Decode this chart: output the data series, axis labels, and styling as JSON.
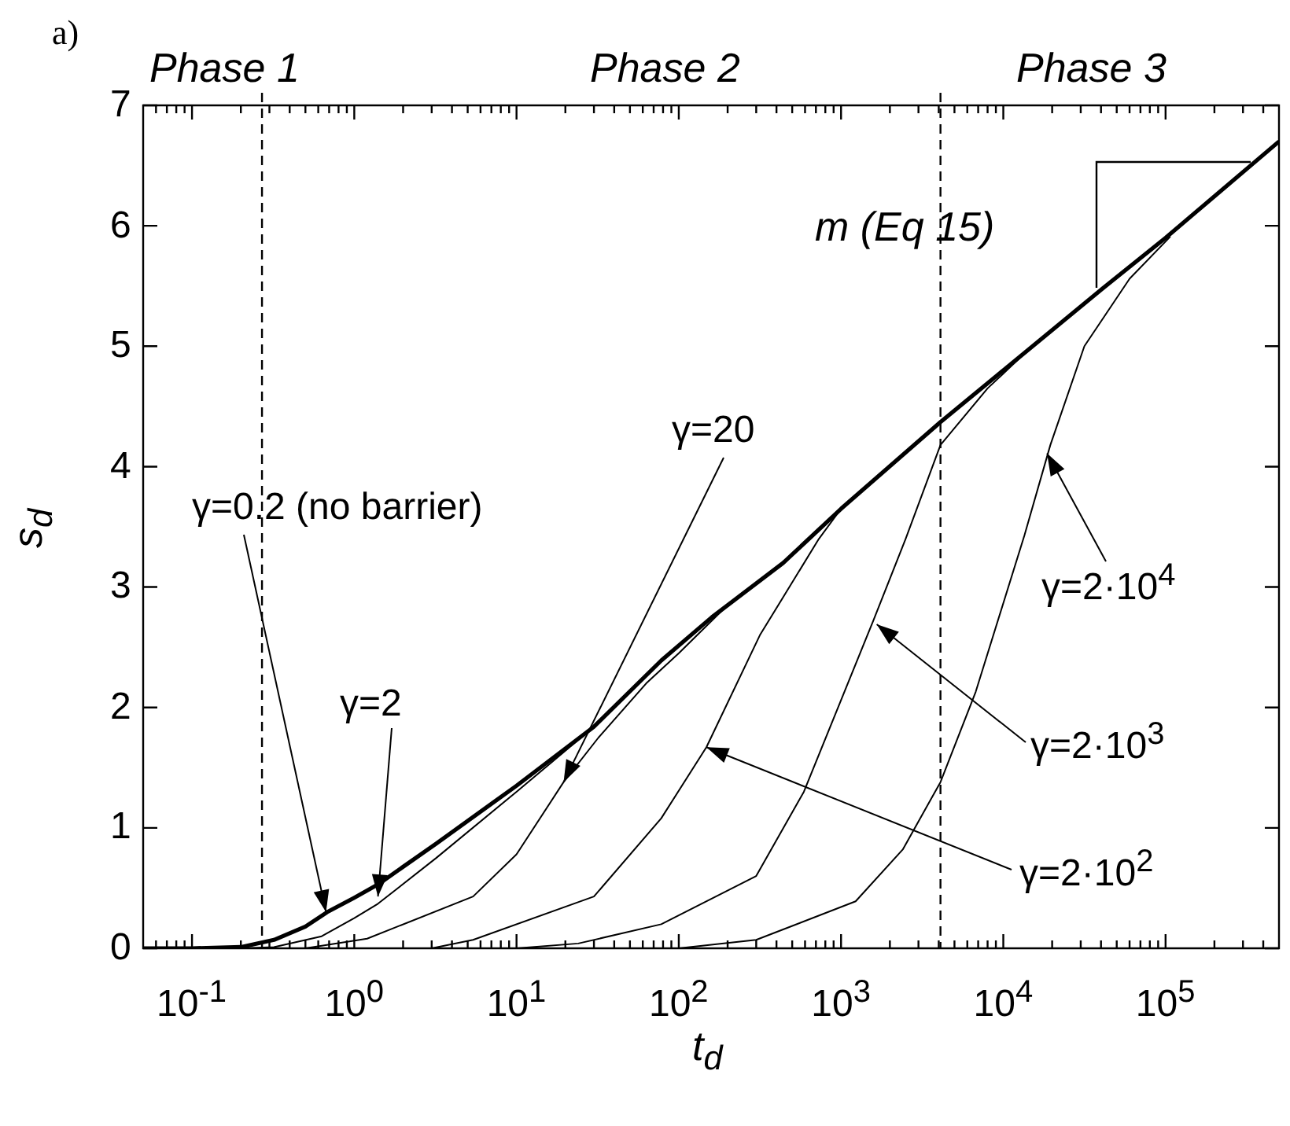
{
  "chart_data": {
    "type": "line",
    "title": "a)",
    "xlabel": "t$_{d}$",
    "ylabel": "s$_{d}$",
    "log": "x",
    "grid": false,
    "legend": false,
    "marker": "none",
    "xlim": [
      0.05,
      500000
    ],
    "ylim": [
      0,
      7
    ],
    "yticks": [
      0,
      1,
      2,
      3,
      4,
      5,
      6,
      7
    ],
    "xticks": [
      {
        "value": 0.06,
        "label": null
      },
      {
        "value": 0.07,
        "label": null
      },
      {
        "value": 0.08,
        "label": null
      },
      {
        "value": 0.09,
        "label": null
      },
      {
        "value": 0.1,
        "label": "10$^{-1}$"
      },
      {
        "value": 0.2,
        "label": null
      },
      {
        "value": 0.3,
        "label": null
      },
      {
        "value": 0.4,
        "label": null
      },
      {
        "value": 0.5,
        "label": null
      },
      {
        "value": 0.6,
        "label": null
      },
      {
        "value": 0.7,
        "label": null
      },
      {
        "value": 0.8,
        "label": null
      },
      {
        "value": 0.9,
        "label": null
      },
      {
        "value": 1,
        "label": "10$^{0}$"
      },
      {
        "value": 2,
        "label": null
      },
      {
        "value": 3,
        "label": null
      },
      {
        "value": 4,
        "label": null
      },
      {
        "value": 5,
        "label": null
      },
      {
        "value": 6,
        "label": null
      },
      {
        "value": 7,
        "label": null
      },
      {
        "value": 8,
        "label": null
      },
      {
        "value": 9,
        "label": null
      },
      {
        "value": 10,
        "label": "10$^{1}$"
      },
      {
        "value": 20,
        "label": null
      },
      {
        "value": 30,
        "label": null
      },
      {
        "value": 40,
        "label": null
      },
      {
        "value": 50,
        "label": null
      },
      {
        "value": 60,
        "label": null
      },
      {
        "value": 70,
        "label": null
      },
      {
        "value": 80,
        "label": null
      },
      {
        "value": 90,
        "label": null
      },
      {
        "value": 100,
        "label": "10$^{2}$"
      },
      {
        "value": 200,
        "label": null
      },
      {
        "value": 300,
        "label": null
      },
      {
        "value": 400,
        "label": null
      },
      {
        "value": 500,
        "label": null
      },
      {
        "value": 600,
        "label": null
      },
      {
        "value": 700,
        "label": null
      },
      {
        "value": 800,
        "label": null
      },
      {
        "value": 900,
        "label": null
      },
      {
        "value": 1000,
        "label": "10$^{3}$"
      },
      {
        "value": 2000,
        "label": null
      },
      {
        "value": 3000,
        "label": null
      },
      {
        "value": 4000,
        "label": null
      },
      {
        "value": 5000,
        "label": null
      },
      {
        "value": 6000,
        "label": null
      },
      {
        "value": 7000,
        "label": null
      },
      {
        "value": 8000,
        "label": null
      },
      {
        "value": 9000,
        "label": null
      },
      {
        "value": 10000,
        "label": "10$^{4}$"
      },
      {
        "value": 20000,
        "label": null
      },
      {
        "value": 30000,
        "label": null
      },
      {
        "value": 40000,
        "label": null
      },
      {
        "value": 50000,
        "label": null
      },
      {
        "value": 60000,
        "label": null
      },
      {
        "value": 70000,
        "label": null
      },
      {
        "value": 80000,
        "label": null
      },
      {
        "value": 90000,
        "label": null
      },
      {
        "value": 100000,
        "label": "10$^{5}$"
      },
      {
        "value": 200000,
        "label": null
      },
      {
        "value": 300000,
        "label": null
      },
      {
        "value": 400000,
        "label": null
      }
    ],
    "series": [
      {
        "color": "#000000",
        "x": [
          0.05,
          0.1,
          0.2,
          0.32,
          0.5,
          0.68,
          1,
          1.4,
          3.2,
          10,
          30,
          78,
          160,
          440,
          1000,
          4100,
          10000,
          41000,
          100000,
          500000
        ],
        "values": [
          0,
          0,
          0.01,
          0.07,
          0.18,
          0.3,
          0.42,
          0.53,
          0.87,
          1.35,
          1.84,
          2.39,
          2.75,
          3.2,
          3.65,
          4.37,
          4.8,
          5.48,
          5.9,
          6.7
        ]
      },
      {
        "color": "#000000",
        "x": [
          0.05,
          0.2,
          0.32,
          0.63,
          1,
          1.4,
          3.2,
          10,
          30
        ],
        "values": [
          0,
          0,
          0.01,
          0.1,
          0.25,
          0.37,
          0.75,
          1.3,
          1.84
        ]
      },
      {
        "color": "#000000",
        "x": [
          0.05,
          0.5,
          1.2,
          5.4,
          10,
          19.5,
          32,
          63,
          100,
          200
        ],
        "values": [
          0,
          0,
          0.08,
          0.43,
          0.78,
          1.38,
          1.75,
          2.2,
          2.45,
          2.85
        ]
      },
      {
        "color": "#000000",
        "x": [
          0.05,
          3,
          5.4,
          30,
          78,
          148,
          316,
          730,
          1000
        ],
        "values": [
          0,
          0,
          0.07,
          0.43,
          1.08,
          1.67,
          2.6,
          3.4,
          3.65
        ]
      },
      {
        "color": "#000000",
        "x": [
          0.05,
          10,
          24,
          78,
          300,
          590,
          1580,
          2500,
          4100,
          8000,
          12600
        ],
        "values": [
          0,
          0,
          0.04,
          0.2,
          0.6,
          1.3,
          2.72,
          3.4,
          4.18,
          4.65,
          4.9
        ]
      },
      {
        "color": "#000000",
        "x": [
          0.05,
          100,
          300,
          1230,
          2400,
          4100,
          6760,
          13500,
          19500,
          31600,
          60000,
          107000
        ],
        "values": [
          0,
          0,
          0.07,
          0.39,
          0.82,
          1.38,
          2.13,
          3.43,
          4.18,
          5.0,
          5.56,
          5.91
        ]
      }
    ],
    "ref_lines": [
      {
        "axis": "x",
        "value": 0.27,
        "line_style": "dashed",
        "color": "#000000"
      },
      {
        "axis": "x",
        "value": 4100,
        "line_style": "dashed",
        "color": "#000000"
      }
    ],
    "annotations": [
      "Phase 1",
      "Phase 2",
      "Phase 3",
      "m (Eq 15)",
      {
        "text": "γ=0.2 (no barrier)",
        "x": 0.67,
        "y": 0.3
      },
      {
        "text": "γ=2",
        "x": 1.4,
        "y": 0.43
      },
      {
        "text": "γ=20",
        "x": 19.5,
        "y": 1.38
      },
      {
        "text": "γ=2·10$^{2}$",
        "x": 148,
        "y": 1.67
      },
      {
        "text": "γ=2·10$^{3}$",
        "x": 1660,
        "y": 2.69
      },
      {
        "text": "γ=2·10$^{4}$",
        "x": 18600,
        "y": 4.11
      }
    ]
  }
}
